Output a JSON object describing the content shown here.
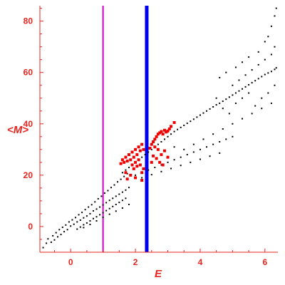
{
  "chart_data": {
    "type": "scatter",
    "xlabel": "E",
    "ylabel": "<M>",
    "xlim": [
      -0.95,
      6.4
    ],
    "ylim": [
      -10,
      86
    ],
    "x_ticks": [
      0,
      2,
      4,
      6
    ],
    "y_ticks": [
      0,
      20,
      40,
      60,
      80
    ],
    "x_tick_labels": [
      "0",
      "2",
      "4",
      "6"
    ],
    "y_tick_labels": [
      "0",
      "20",
      "40",
      "60",
      "80"
    ],
    "grid": false,
    "axis_color": "#e8241f",
    "vertical_lines": [
      {
        "x": 1.0,
        "color": "#cc00cc",
        "width": "thin"
      },
      {
        "x": 2.35,
        "color": "#0000ee",
        "width": "thick"
      }
    ],
    "series": [
      {
        "color": "#000000",
        "marker": "small-square",
        "points": [
          [
            -0.85,
            -8.2
          ],
          [
            -0.75,
            -6.5
          ],
          [
            -0.7,
            -4.8
          ],
          [
            -0.6,
            -6.1
          ],
          [
            -0.55,
            -3.6
          ],
          [
            -0.5,
            -5.2
          ],
          [
            -0.45,
            -2.4
          ],
          [
            -0.4,
            -4.0
          ],
          [
            -0.35,
            -1.2
          ],
          [
            -0.3,
            -3.1
          ],
          [
            -0.25,
            -0.3
          ],
          [
            -0.2,
            -2.0
          ],
          [
            -0.15,
            0.6
          ],
          [
            -0.1,
            -1.2
          ],
          [
            -0.05,
            1.8
          ],
          [
            0.0,
            0.2
          ],
          [
            0.05,
            2.6
          ],
          [
            0.1,
            0.9
          ],
          [
            0.15,
            3.5
          ],
          [
            0.2,
            1.8
          ],
          [
            0.25,
            4.6
          ],
          [
            0.3,
            2.5
          ],
          [
            0.35,
            5.5
          ],
          [
            0.4,
            3.4
          ],
          [
            0.45,
            6.6
          ],
          [
            0.5,
            4.1
          ],
          [
            0.55,
            7.6
          ],
          [
            0.6,
            5.0
          ],
          [
            0.65,
            8.5
          ],
          [
            0.7,
            6.1
          ],
          [
            0.75,
            9.6
          ],
          [
            0.8,
            6.8
          ],
          [
            0.85,
            10.8
          ],
          [
            0.9,
            7.6
          ],
          [
            0.95,
            11.8
          ],
          [
            1.0,
            8.4
          ],
          [
            1.05,
            13.0
          ],
          [
            1.1,
            9.3
          ],
          [
            1.15,
            14.0
          ],
          [
            1.2,
            10.2
          ],
          [
            1.25,
            15.2
          ],
          [
            1.3,
            11.0
          ],
          [
            1.35,
            16.2
          ],
          [
            1.4,
            11.8
          ],
          [
            1.45,
            17.4
          ],
          [
            1.5,
            12.6
          ],
          [
            1.55,
            18.4
          ],
          [
            1.6,
            13.4
          ],
          [
            1.65,
            19.5
          ],
          [
            1.7,
            14.2
          ],
          [
            1.75,
            20.6
          ],
          [
            1.8,
            15.2
          ],
          [
            0.2,
            -1.0
          ],
          [
            0.3,
            -0.2
          ],
          [
            0.4,
            0.7
          ],
          [
            0.5,
            1.4
          ],
          [
            0.6,
            2.2
          ],
          [
            0.7,
            3.1
          ],
          [
            0.8,
            3.8
          ],
          [
            0.9,
            4.6
          ],
          [
            1.0,
            5.4
          ],
          [
            1.1,
            6.2
          ],
          [
            1.2,
            7.0
          ],
          [
            1.3,
            7.8
          ],
          [
            1.4,
            8.6
          ],
          [
            1.5,
            9.4
          ],
          [
            1.6,
            10.2
          ],
          [
            1.7,
            11.0
          ],
          [
            0.4,
            -0.4
          ],
          [
            0.6,
            0.8
          ],
          [
            0.8,
            2.2
          ],
          [
            1.0,
            3.6
          ],
          [
            1.2,
            4.8
          ],
          [
            1.4,
            6.0
          ],
          [
            1.6,
            7.2
          ],
          [
            1.8,
            8.6
          ],
          [
            1.6,
            21.0
          ],
          [
            1.7,
            22.0
          ],
          [
            1.8,
            23.0
          ],
          [
            1.9,
            24.0
          ],
          [
            2.0,
            25.0
          ],
          [
            2.1,
            26.0
          ],
          [
            2.2,
            27.0
          ],
          [
            2.3,
            28.0
          ],
          [
            2.4,
            29.0
          ],
          [
            2.5,
            30.0
          ],
          [
            2.6,
            31.0
          ],
          [
            2.7,
            32.0
          ],
          [
            2.8,
            33.0
          ],
          [
            2.9,
            34.0
          ],
          [
            3.0,
            35.0
          ],
          [
            3.1,
            36.0
          ],
          [
            3.2,
            37.0
          ],
          [
            3.3,
            37.8
          ],
          [
            3.4,
            38.6
          ],
          [
            3.5,
            39.4
          ],
          [
            3.6,
            40.2
          ],
          [
            3.7,
            41.0
          ],
          [
            3.8,
            41.8
          ],
          [
            3.9,
            42.6
          ],
          [
            4.0,
            43.4
          ],
          [
            4.1,
            44.2
          ],
          [
            4.2,
            45.0
          ],
          [
            4.3,
            45.8
          ],
          [
            4.4,
            46.6
          ],
          [
            4.5,
            47.4
          ],
          [
            4.6,
            48.0
          ],
          [
            4.7,
            48.8
          ],
          [
            4.8,
            49.6
          ],
          [
            4.9,
            50.4
          ],
          [
            5.0,
            51.2
          ],
          [
            5.1,
            52.0
          ],
          [
            5.2,
            52.8
          ],
          [
            5.3,
            53.6
          ],
          [
            5.4,
            54.4
          ],
          [
            5.5,
            55.2
          ],
          [
            5.6,
            56.0
          ],
          [
            5.7,
            56.8
          ],
          [
            5.8,
            57.6
          ],
          [
            5.9,
            58.4
          ],
          [
            6.0,
            59.2
          ],
          [
            6.1,
            59.8
          ],
          [
            6.2,
            60.4
          ],
          [
            6.3,
            61.2
          ],
          [
            6.35,
            61.8
          ],
          [
            2.0,
            20.0
          ],
          [
            2.2,
            21.0
          ],
          [
            2.4,
            22.0
          ],
          [
            2.6,
            23.0
          ],
          [
            2.8,
            24.0
          ],
          [
            3.0,
            25.0
          ],
          [
            3.2,
            26.0
          ],
          [
            3.4,
            27.0
          ],
          [
            3.6,
            28.0
          ],
          [
            3.8,
            29.0
          ],
          [
            4.0,
            30.0
          ],
          [
            4.2,
            31.0
          ],
          [
            4.4,
            32.0
          ],
          [
            4.6,
            33.0
          ],
          [
            4.8,
            34.0
          ],
          [
            5.0,
            35.0
          ],
          [
            2.2,
            19.0
          ],
          [
            2.5,
            20.2
          ],
          [
            2.8,
            21.4
          ],
          [
            3.1,
            22.6
          ],
          [
            3.4,
            23.8
          ],
          [
            3.7,
            25.0
          ],
          [
            4.0,
            26.2
          ],
          [
            4.3,
            27.4
          ],
          [
            4.6,
            28.6
          ],
          [
            3.2,
            31.0
          ],
          [
            3.5,
            30.0
          ],
          [
            3.8,
            32.0
          ],
          [
            4.1,
            34.0
          ],
          [
            4.4,
            36.0
          ],
          [
            4.7,
            38.0
          ],
          [
            5.0,
            40.0
          ],
          [
            5.3,
            42.0
          ],
          [
            5.6,
            44.0
          ],
          [
            5.9,
            46.0
          ],
          [
            6.2,
            48.0
          ],
          [
            5.0,
            55.0
          ],
          [
            5.2,
            57.0
          ],
          [
            5.4,
            59.0
          ],
          [
            5.6,
            61.0
          ],
          [
            5.8,
            63.0
          ],
          [
            6.0,
            65.0
          ],
          [
            6.2,
            67.0
          ],
          [
            6.3,
            70.0
          ],
          [
            6.1,
            74.0
          ],
          [
            6.2,
            78.0
          ],
          [
            6.3,
            82.0
          ],
          [
            6.35,
            85.0
          ],
          [
            6.0,
            72.0
          ],
          [
            5.8,
            68.0
          ],
          [
            5.5,
            66.0
          ],
          [
            5.3,
            64.0
          ],
          [
            5.1,
            62.0
          ],
          [
            4.8,
            60.0
          ],
          [
            4.6,
            58.0
          ],
          [
            4.5,
            50.0
          ],
          [
            4.7,
            46.0
          ],
          [
            4.9,
            44.0
          ],
          [
            5.1,
            48.0
          ],
          [
            5.3,
            50.0
          ],
          [
            5.5,
            52.0
          ],
          [
            5.7,
            47.0
          ],
          [
            5.9,
            50.0
          ],
          [
            6.1,
            52.0
          ],
          [
            6.3,
            55.0
          ]
        ]
      },
      {
        "color": "#ee0000",
        "marker": "square",
        "points": [
          [
            1.55,
            24.5
          ],
          [
            1.6,
            26.0
          ],
          [
            1.65,
            25.0
          ],
          [
            1.7,
            27.0
          ],
          [
            1.75,
            25.5
          ],
          [
            1.8,
            28.0
          ],
          [
            1.85,
            26.0
          ],
          [
            1.9,
            29.0
          ],
          [
            1.95,
            27.0
          ],
          [
            2.0,
            30.0
          ],
          [
            2.05,
            28.0
          ],
          [
            2.1,
            31.0
          ],
          [
            2.15,
            29.5
          ],
          [
            2.2,
            32.0
          ],
          [
            2.25,
            30.0
          ],
          [
            1.9,
            24.0
          ],
          [
            1.95,
            22.5
          ],
          [
            2.0,
            25.0
          ],
          [
            2.05,
            23.5
          ],
          [
            2.1,
            26.0
          ],
          [
            2.15,
            24.0
          ],
          [
            2.2,
            21.0
          ],
          [
            2.25,
            22.5
          ],
          [
            2.45,
            30.5
          ],
          [
            2.5,
            32.0
          ],
          [
            2.55,
            33.0
          ],
          [
            2.6,
            34.0
          ],
          [
            2.65,
            35.0
          ],
          [
            2.7,
            36.0
          ],
          [
            2.75,
            36.5
          ],
          [
            2.8,
            37.0
          ],
          [
            2.85,
            36.0
          ],
          [
            2.9,
            37.5
          ],
          [
            2.95,
            36.8
          ],
          [
            3.0,
            37.2
          ],
          [
            3.05,
            38.0
          ],
          [
            3.1,
            39.0
          ],
          [
            3.2,
            40.5
          ],
          [
            2.6,
            31.0
          ],
          [
            2.7,
            30.0
          ],
          [
            2.8,
            28.0
          ],
          [
            2.9,
            29.5
          ],
          [
            3.0,
            27.0
          ],
          [
            2.75,
            25.0
          ],
          [
            2.85,
            24.0
          ],
          [
            2.65,
            26.5
          ],
          [
            2.55,
            27.5
          ],
          [
            2.5,
            25.0
          ],
          [
            1.75,
            18.5
          ],
          [
            1.85,
            20.0
          ],
          [
            2.0,
            19.0
          ],
          [
            2.2,
            18.0
          ],
          [
            1.7,
            21.0
          ]
        ]
      }
    ]
  }
}
